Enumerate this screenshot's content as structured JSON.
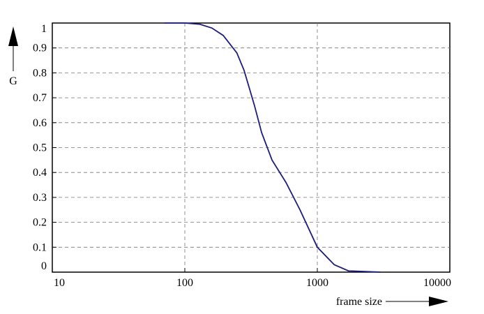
{
  "chart_data": {
    "type": "line",
    "x_label": "frame size",
    "y_label": "G",
    "x": [
      70,
      100,
      130,
      160,
      195,
      247,
      280,
      335,
      380,
      455,
      580,
      740,
      1000,
      1340,
      1720,
      3000
    ],
    "series": [
      {
        "color": "#1c1c7c",
        "values": [
          1,
          1,
          0.995,
          0.98,
          0.95,
          0.88,
          0.81,
          0.67,
          0.56,
          0.45,
          0.36,
          0.25,
          0.1,
          0.03,
          0.005,
          0
        ]
      }
    ],
    "xscale": "log",
    "xlim": [
      10,
      10000
    ],
    "xticks": [
      10,
      100,
      1000,
      10000
    ],
    "ylim": [
      0,
      1
    ],
    "yticks": [
      0,
      0.1,
      0.2,
      0.3,
      0.4,
      0.5,
      0.6,
      0.7,
      0.8,
      0.9,
      1
    ],
    "grid": true
  }
}
